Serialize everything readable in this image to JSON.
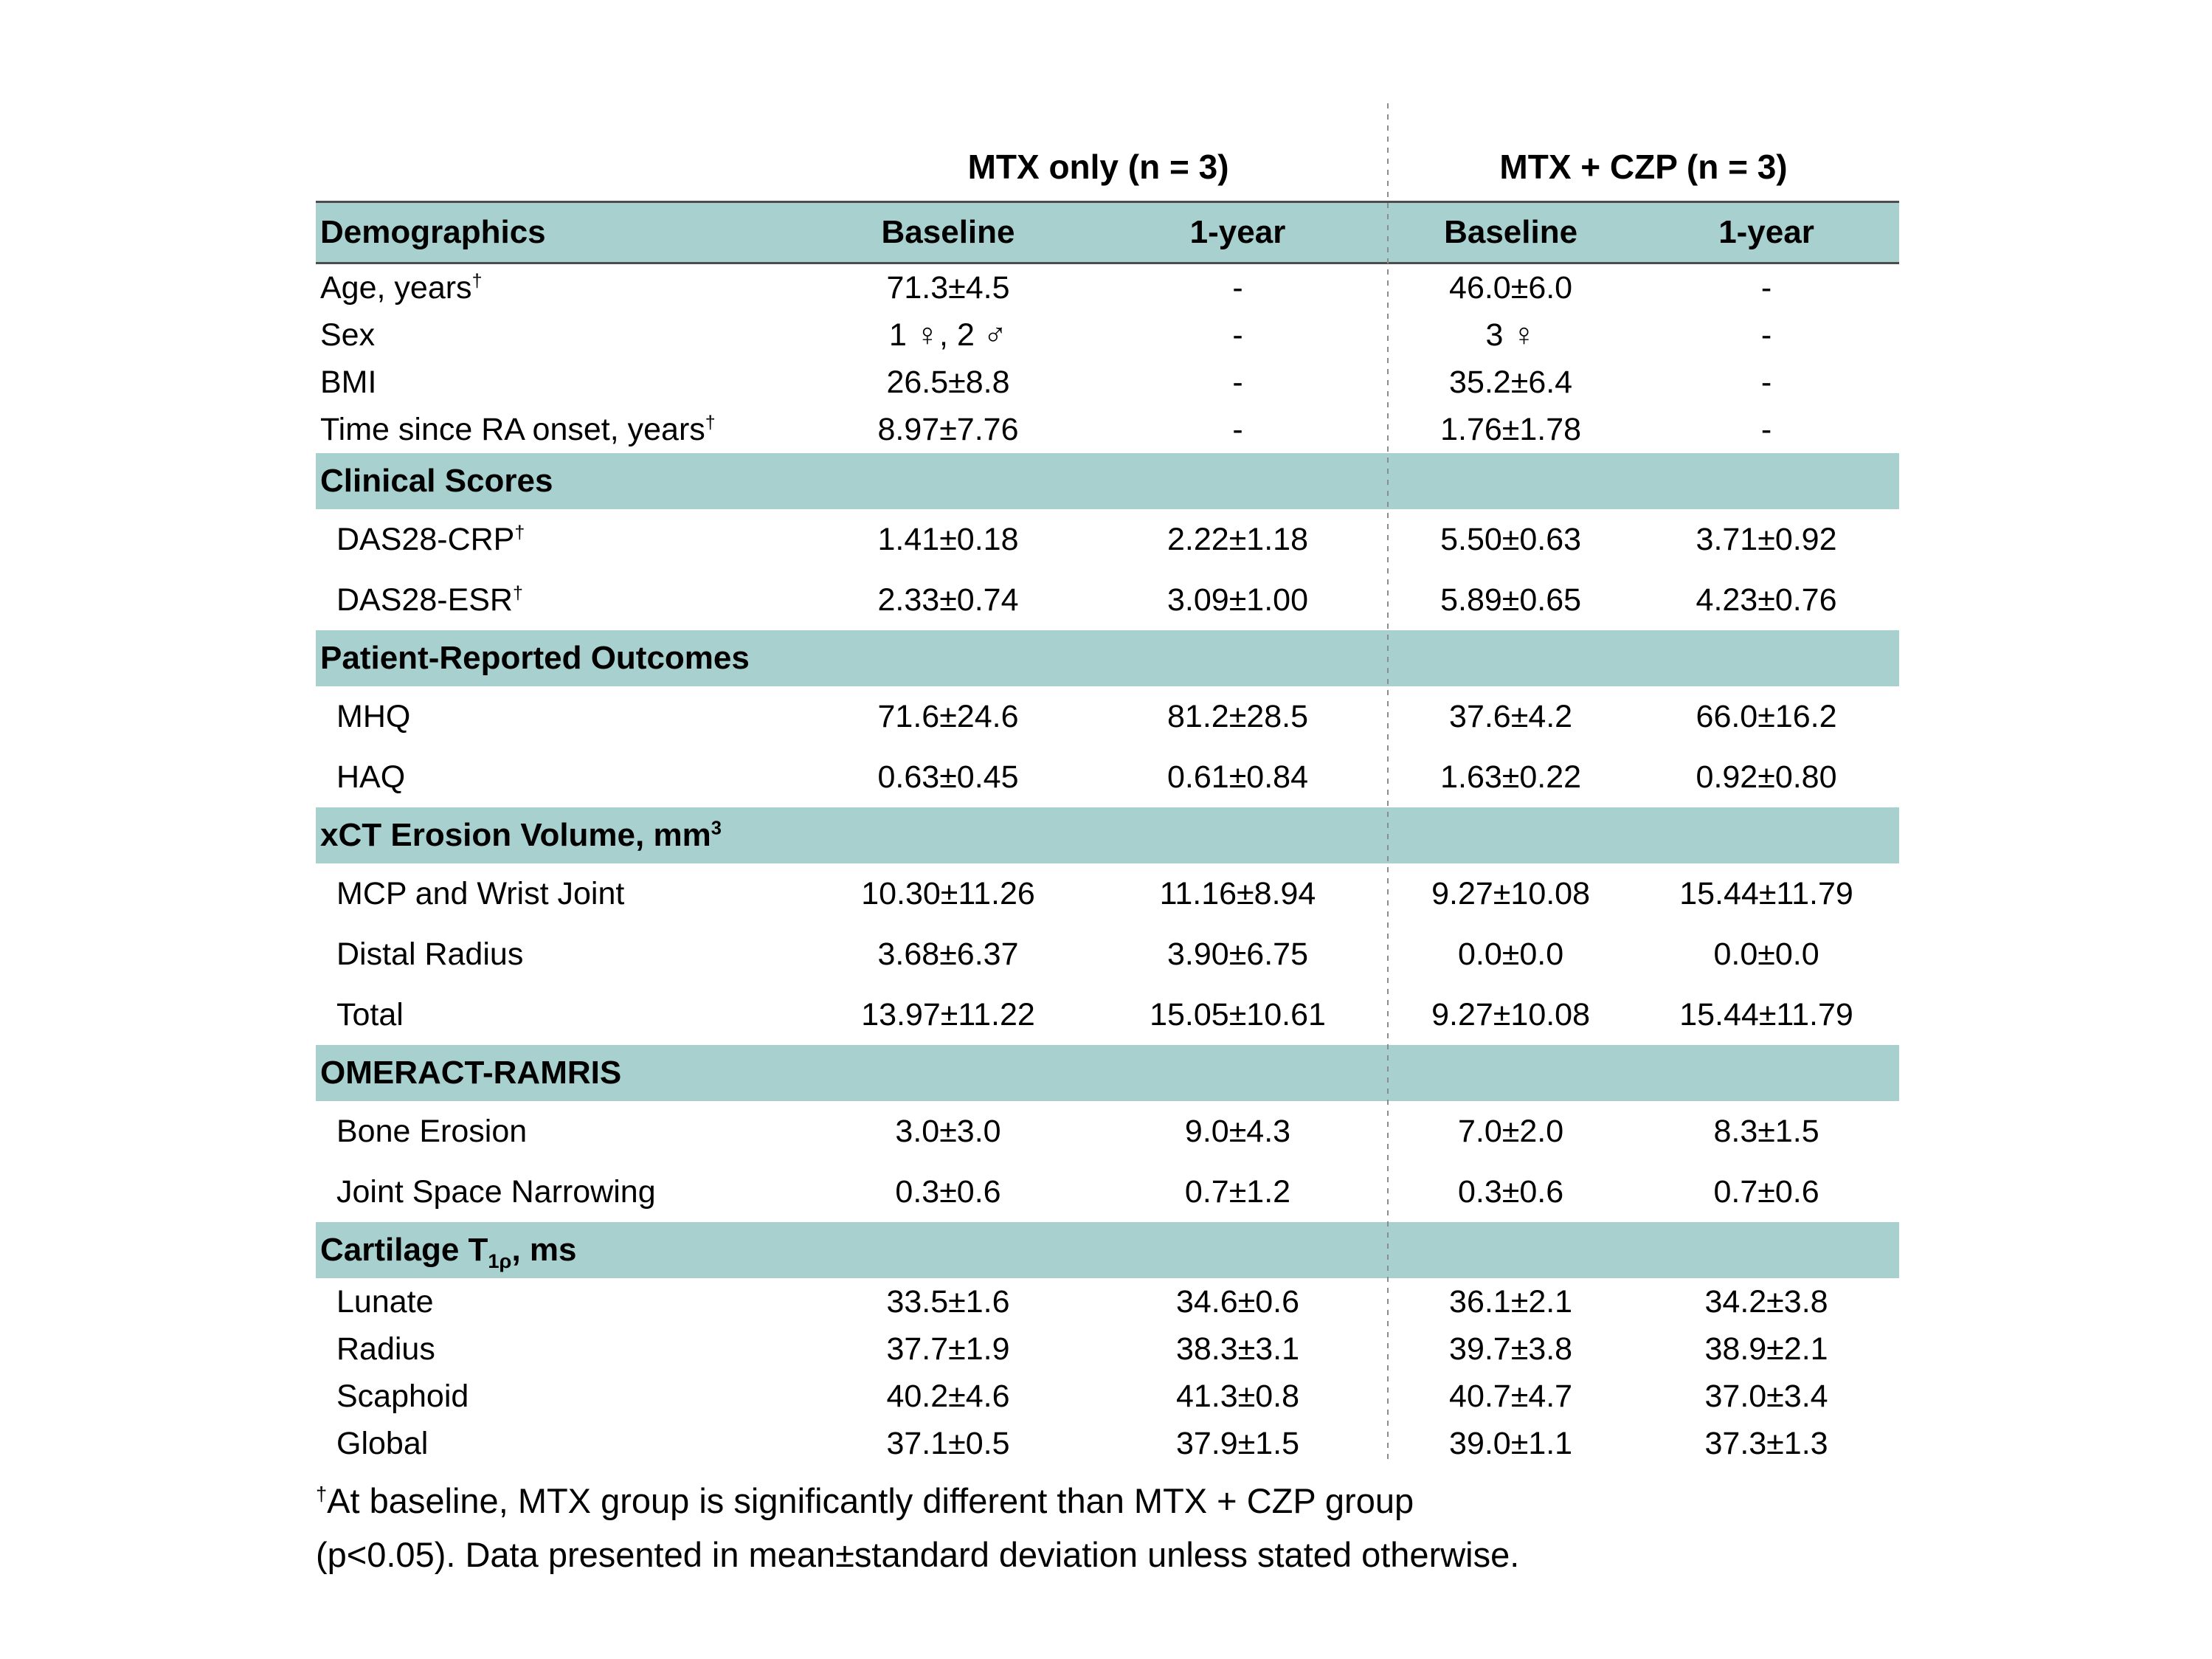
{
  "colors": {
    "band_teal": "#a7d0cf",
    "band_border": "#4d4d4d",
    "divider_gray": "#8d8d8d",
    "text": "#000000",
    "background": "#ffffff"
  },
  "table": {
    "groups": [
      {
        "label": "MTX only (n = 3)"
      },
      {
        "label": "MTX + CZP (n = 3)"
      }
    ],
    "header": {
      "label": "Demographics",
      "columns": [
        "Baseline",
        "1-year",
        "Baseline",
        "1-year"
      ]
    },
    "sections": [
      {
        "title": "",
        "row_size": "compact",
        "rows": [
          {
            "label": "Age, years^{†}",
            "values": [
              "71.3±4.5",
              "-",
              "46.0±6.0",
              "-"
            ]
          },
          {
            "label": "Sex",
            "values": [
              "1 ♀, 2 ♂",
              "-",
              "3 ♀",
              "-"
            ]
          },
          {
            "label": "BMI",
            "values": [
              "26.5±8.8",
              "-",
              "35.2±6.4",
              "-"
            ]
          },
          {
            "label": "Time since RA onset, years^{†}",
            "values": [
              "8.97±7.76",
              "-",
              "1.76±1.78",
              "-"
            ]
          }
        ]
      },
      {
        "title": "Clinical Scores",
        "row_size": "wide",
        "rows": [
          {
            "label": "DAS28-CRP^{†}",
            "values": [
              "1.41±0.18",
              "2.22±1.18",
              "5.50±0.63",
              "3.71±0.92"
            ]
          },
          {
            "label": "DAS28-ESR^{†}",
            "values": [
              "2.33±0.74",
              "3.09±1.00",
              "5.89±0.65",
              "4.23±0.76"
            ]
          }
        ]
      },
      {
        "title": "Patient-Reported Outcomes",
        "row_size": "wide",
        "rows": [
          {
            "label": "MHQ",
            "values": [
              "71.6±24.6",
              "81.2±28.5",
              "37.6±4.2",
              "66.0±16.2"
            ]
          },
          {
            "label": "HAQ",
            "values": [
              "0.63±0.45",
              "0.61±0.84",
              "1.63±0.22",
              "0.92±0.80"
            ]
          }
        ]
      },
      {
        "title": "xCT Erosion Volume, mm^{3}",
        "row_size": "wide",
        "rows": [
          {
            "label": "MCP and Wrist Joint",
            "values": [
              "10.30±11.26",
              "11.16±8.94",
              "9.27±10.08",
              "15.44±11.79"
            ]
          },
          {
            "label": "Distal Radius",
            "values": [
              "3.68±6.37",
              "3.90±6.75",
              "0.0±0.0",
              "0.0±0.0"
            ]
          },
          {
            "label": "Total",
            "values": [
              "13.97±11.22",
              "15.05±10.61",
              "9.27±10.08",
              "15.44±11.79"
            ]
          }
        ]
      },
      {
        "title": "OMERACT-RAMRIS",
        "row_size": "wide",
        "rows": [
          {
            "label": "Bone Erosion",
            "values": [
              "3.0±3.0",
              "9.0±4.3",
              "7.0±2.0",
              "8.3±1.5"
            ]
          },
          {
            "label": "Joint Space Narrowing",
            "values": [
              "0.3±0.6",
              "0.7±1.2",
              "0.3±0.6",
              "0.7±0.6"
            ]
          }
        ]
      },
      {
        "title": "Cartilage T_{1ρ}, ms",
        "row_size": "compact",
        "rows": [
          {
            "label": "Lunate",
            "values": [
              "33.5±1.6",
              "34.6±0.6",
              "36.1±2.1",
              "34.2±3.8"
            ]
          },
          {
            "label": "Radius",
            "values": [
              "37.7±1.9",
              "38.3±3.1",
              "39.7±3.8",
              "38.9±2.1"
            ]
          },
          {
            "label": "Scaphoid",
            "values": [
              "40.2±4.6",
              "41.3±0.8",
              "40.7±4.7",
              "37.0±3.4"
            ]
          },
          {
            "label": "Global",
            "values": [
              "37.1±0.5",
              "37.9±1.5",
              "39.0±1.1",
              "37.3±1.3"
            ]
          }
        ]
      }
    ],
    "footnote_lines": [
      "^{†}At baseline, MTX group is significantly different than MTX + CZP group",
      "(p<0.05). Data presented in mean±standard deviation unless stated otherwise."
    ]
  }
}
